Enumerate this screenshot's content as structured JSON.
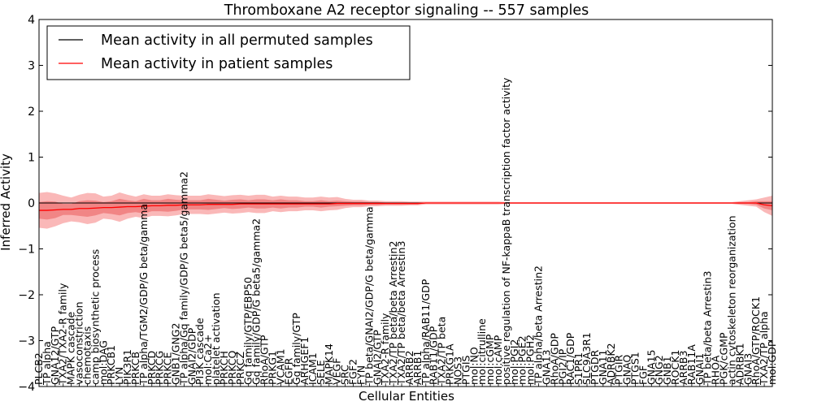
{
  "chart_data": {
    "type": "line",
    "title": "Thromboxane A2 receptor signaling -- 557 samples",
    "xlabel": "Cellular Entities",
    "ylabel": "Inferred Activity",
    "ylim": [
      -4,
      4
    ],
    "yticks": [
      -4,
      -3,
      -2,
      -1,
      0,
      1,
      2,
      3,
      4
    ],
    "legend_position": "top-left",
    "colors": {
      "permuted_line": "#000000",
      "patient_line": "#ff0000",
      "band_inner": "#f08080",
      "band_outer": "#f9b0b0",
      "permuted_band": "#c8c8c8"
    },
    "categories": [
      "PLCB2",
      "TP alpha",
      "GNA12/GTP",
      "TXA2/TXA2-R family",
      "MAPK cascade",
      "vasoconstriction",
      "chemotaxis",
      "camp biosynthetic process",
      "mol:DAG",
      "PRKCB1",
      "LYN",
      "PIK3R1",
      "PRKCB",
      "TP alpha/TGM2/GDP/G beta/gamma",
      "PRKCD",
      "PRKCG",
      "PRKCE",
      "GNB1/GNG2",
      "TP alpha/Gq family/GDP/G beta5/gamma2",
      "GNAI2/GDP",
      "PI3K cascade",
      "mol:Ca2+",
      "platelet activation",
      "PRKCH",
      "PRKCQ",
      "PRKCZ",
      "Gq family/GTP/EBP50",
      "Gq family/GDP/G beta5/gamma2",
      "RhoA/GTP",
      "PRKG1",
      "VCAM1",
      "EGFR",
      "Gq family/GTP",
      "ARHGEF1",
      "ICAM1",
      "SELE",
      "MAPK14",
      "VEGF",
      "SRC",
      "FGF2",
      "FYN",
      "TP beta/GNAI2/GDP/G beta/gamma",
      "GNAI2/GTP",
      "TXA2-R family",
      "TXA2/TP beta/beta Arrestin2",
      "TXA2/TP beta/beta Arrestin3",
      "ARRB2",
      "ARRB1",
      "TP alpha/RAB11/GDP",
      "RAB11/GDP",
      "TXA2/TP beta",
      "PRKG1A",
      "NOS3",
      "PTGIS",
      "mol:NO",
      "mol:citrulline",
      "mol:cGMP",
      "mol:cAMP",
      "positive regulation of NF-kappaB transcription factor activity",
      "mol:PGI2",
      "mol:PGE2",
      "mol:PGH2",
      "TP alpha/beta Arrestin2",
      "GNA13",
      "RhoA/GDP",
      "PGI2/IP",
      "RAC1/GDP",
      "S1PR1",
      "SLC9A3R1",
      "PTGDR",
      "GNA11",
      "ADRBK2",
      "PTGIR",
      "GNAQ",
      "PTGS1",
      "FGF",
      "GNA15",
      "GNG2",
      "GNB1",
      "ROCK1",
      "ARRB3",
      "RAB11A",
      "GNAI1",
      "TP beta/beta Arrestin3",
      "RHOA",
      "PGK/cGMP",
      "actin cytoskeleton reorganization",
      "ADRBK1",
      "GNAI3",
      "RhoA/GTP/ROCK1",
      "TXA2/TP alpha",
      "mol:GDP"
    ],
    "visible_labels": [
      "PLCB2",
      "TP alpha",
      "GNA12/GTP",
      "TXA2/TXA2-R family",
      "MAPK cascade",
      "vasoconstriction",
      "chemotaxis",
      "camp biosynthetic process",
      "mol:DAG",
      "PRKCB1",
      "LYN",
      "PIK3R1",
      "PRKCB",
      "TP alpha/TGM2/GDP/G beta/gamma",
      "PRKCD",
      "PRKCG",
      "PRKCE",
      "GNB1/GNG2",
      "TP alpha/Gq family/GDP/G beta5/gamma2",
      "GNAI2/GDP",
      "PI3K cascade",
      "mol:Ca2+",
      "platelet activation",
      "PRKCH",
      "PRKCQ",
      "PRKCZ",
      "Gq family/GTP/EBP50",
      "Gq family/GDP/G beta5/gamma2",
      "RhoA/GTP",
      "PRKG1",
      "VCAM1",
      "EGFR",
      "Gq family/GTP",
      "ARHGEF1",
      "ICAM1",
      "SELE",
      "MAPK14",
      "VEGF",
      "SRC",
      "FGF2",
      "FYN",
      "TP beta/GNAI2/GDP/G beta/gamma",
      "GNAI2/GTP",
      "TXA2-R family",
      "TXA2/TP beta/beta Arrestin2",
      "TXA2/TP beta/beta Arrestin3",
      "ARRB2",
      "ARRB1",
      "TP alpha/RAB11/GDP",
      "RAB11/GDP",
      "TXA2/TP beta",
      "PRKG1A",
      "NOS3",
      "PTGIS",
      "mol:NO",
      "mol:citrulline",
      "mol:cGMP",
      "mol:cAMP",
      "positive regulation of NF-kappaB transcription factor activity",
      "mol:PGI2",
      "mol:PGE2",
      "mol:PGH2",
      "TP alpha/beta Arrestin2",
      "GNA13",
      "RhoA/GDP",
      "PGI2/IP",
      "RAC1/GDP",
      "S1PR1",
      "SLC9A3R1",
      "PTGDR",
      "GNA11",
      "ADRBK2",
      "PTGIR",
      "GNAQ",
      "PTGS1",
      "FGF",
      "GNA15",
      "GNG2",
      "GNB1",
      "ROCK1",
      "ARRB3",
      "RAB11A",
      "GNAI1",
      "TP beta/beta Arrestin3",
      "RHOA",
      "PGK/cGMP",
      "actin cytoskeleton reorganization",
      "ADRBK1",
      "GNAI3",
      "RhoA/GTP/ROCK1",
      "TXA2/TP alpha",
      "mol:GDP"
    ],
    "series": [
      {
        "name": "Mean activity in all permuted samples",
        "color": "#000000",
        "values": [
          0.0,
          0.0,
          0.0,
          0.0,
          0.0,
          0.0,
          0.0,
          0.0,
          0.0,
          0.0,
          0.0,
          0.0,
          0.0,
          0.0,
          0.0,
          0.0,
          0.0,
          0.0,
          0.0,
          0.0,
          0.0,
          0.0,
          0.0,
          0.0,
          0.0,
          0.0,
          0.0,
          0.0,
          0.0,
          0.0,
          0.0,
          0.0,
          0.0,
          0.0,
          0.0,
          0.0,
          0.0,
          0.0,
          0.0,
          0.0,
          0.0,
          0.0,
          0.0,
          0.0,
          0.0,
          0.0,
          0.0,
          0.0,
          0.0,
          0.0,
          0.0,
          0.0,
          0.0,
          0.0,
          0.0,
          0.0,
          0.0,
          0.0,
          0.0,
          0.0,
          0.0,
          0.0,
          0.0,
          0.0,
          0.0,
          0.0,
          0.0,
          0.0,
          0.0,
          0.0,
          0.0,
          0.0,
          0.0,
          0.0,
          0.0,
          0.0,
          0.0,
          0.0,
          0.0,
          0.0,
          0.0,
          0.0,
          0.0,
          0.0,
          0.0,
          0.0,
          0.0,
          0.0,
          0.0,
          0.0,
          0.0,
          0.0
        ]
      },
      {
        "name": "Mean activity in patient samples",
        "color": "#ff0000",
        "values": [
          -0.16,
          -0.16,
          -0.15,
          -0.14,
          -0.14,
          -0.12,
          -0.12,
          -0.11,
          -0.1,
          -0.1,
          -0.09,
          -0.08,
          -0.08,
          -0.07,
          -0.06,
          -0.06,
          -0.05,
          -0.05,
          -0.04,
          -0.04,
          -0.04,
          -0.03,
          -0.03,
          -0.03,
          -0.03,
          -0.02,
          -0.02,
          -0.02,
          -0.02,
          -0.02,
          -0.02,
          -0.02,
          -0.02,
          -0.02,
          -0.02,
          -0.02,
          -0.02,
          -0.01,
          -0.01,
          -0.01,
          -0.01,
          -0.01,
          -0.01,
          -0.01,
          -0.01,
          -0.01,
          -0.01,
          -0.01,
          0.0,
          0.0,
          0.0,
          0.0,
          0.0,
          0.0,
          0.0,
          0.0,
          0.0,
          0.0,
          0.0,
          0.0,
          0.0,
          0.0,
          0.0,
          0.0,
          0.0,
          0.0,
          0.0,
          0.0,
          0.0,
          0.0,
          0.0,
          0.0,
          0.0,
          0.0,
          0.0,
          0.0,
          0.0,
          0.0,
          0.0,
          0.0,
          0.0,
          0.0,
          0.0,
          0.0,
          0.0,
          0.0,
          0.0,
          0.0,
          0.0,
          0.0,
          -0.04,
          -0.06
        ]
      }
    ],
    "patient_band_inner": [
      0.18,
      0.2,
      0.18,
      0.12,
      0.12,
      0.16,
      0.18,
      0.16,
      0.12,
      0.14,
      0.18,
      0.14,
      0.12,
      0.16,
      0.12,
      0.12,
      0.14,
      0.12,
      0.1,
      0.1,
      0.1,
      0.12,
      0.1,
      0.08,
      0.1,
      0.1,
      0.08,
      0.1,
      0.1,
      0.08,
      0.1,
      0.08,
      0.08,
      0.06,
      0.06,
      0.08,
      0.06,
      0.06,
      0.05,
      0.04,
      0.04,
      0.03,
      0.03,
      0.02,
      0.02,
      0.02,
      0.02,
      0.02,
      0.01,
      0.01,
      0.01,
      0.01,
      0.01,
      0.01,
      0.01,
      0.01,
      0.01,
      0.01,
      0.01,
      0.01,
      0.01,
      0.01,
      0.01,
      0.01,
      0.01,
      0.01,
      0.01,
      0.01,
      0.01,
      0.01,
      0.01,
      0.01,
      0.01,
      0.01,
      0.01,
      0.01,
      0.01,
      0.01,
      0.01,
      0.01,
      0.01,
      0.01,
      0.01,
      0.01,
      0.01,
      0.01,
      0.01,
      0.02,
      0.02,
      0.04,
      0.08,
      0.1
    ],
    "patient_band_outer": [
      0.38,
      0.4,
      0.36,
      0.3,
      0.26,
      0.3,
      0.34,
      0.32,
      0.24,
      0.26,
      0.32,
      0.26,
      0.22,
      0.26,
      0.22,
      0.22,
      0.24,
      0.22,
      0.2,
      0.2,
      0.2,
      0.22,
      0.2,
      0.18,
      0.2,
      0.2,
      0.18,
      0.2,
      0.2,
      0.16,
      0.18,
      0.16,
      0.16,
      0.14,
      0.14,
      0.16,
      0.14,
      0.14,
      0.1,
      0.08,
      0.08,
      0.06,
      0.06,
      0.05,
      0.05,
      0.05,
      0.04,
      0.04,
      0.03,
      0.03,
      0.03,
      0.03,
      0.03,
      0.03,
      0.03,
      0.03,
      0.03,
      0.03,
      0.02,
      0.02,
      0.02,
      0.02,
      0.02,
      0.02,
      0.02,
      0.02,
      0.02,
      0.02,
      0.02,
      0.02,
      0.02,
      0.02,
      0.02,
      0.02,
      0.02,
      0.02,
      0.02,
      0.02,
      0.02,
      0.02,
      0.02,
      0.02,
      0.02,
      0.02,
      0.02,
      0.02,
      0.02,
      0.04,
      0.06,
      0.08,
      0.16,
      0.22
    ]
  }
}
